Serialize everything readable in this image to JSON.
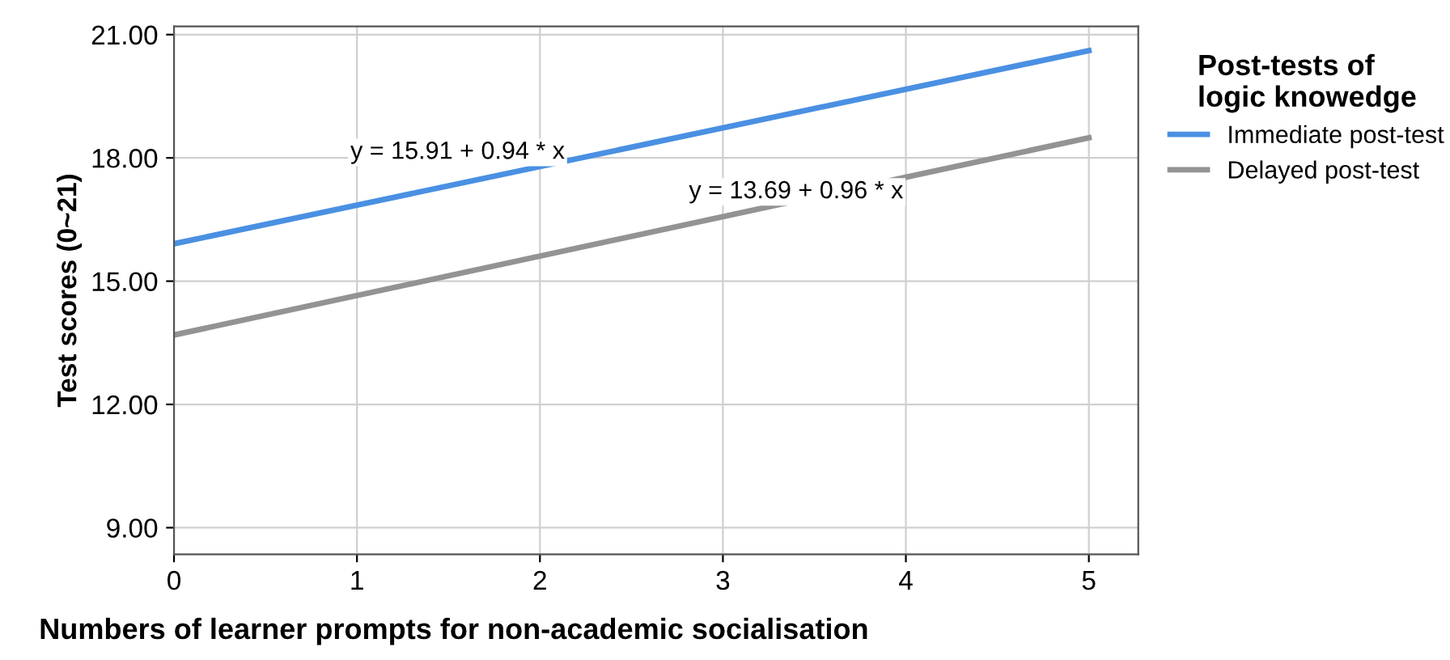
{
  "chart_data": {
    "type": "line",
    "xlabel": "Numbers of learner prompts for non-academic socialisation",
    "ylabel": "Test scores (0~21)",
    "legend_title": "Post-tests of\nlogic knowedge",
    "x": [
      0,
      5
    ],
    "series": [
      {
        "name": "Immediate post-test",
        "color": "#4a90e2",
        "values": [
          15.91,
          20.61
        ]
      },
      {
        "name": "Delayed post-test",
        "color": "#939393",
        "values": [
          13.69,
          18.49
        ]
      }
    ],
    "annotations": [
      "y = 15.91 + 0.94 * x",
      "y = 13.69 + 0.96 * x"
    ],
    "xlim": [
      0,
      5.27
    ],
    "ylim": [
      8.35,
      21.2
    ],
    "xticks": [
      0,
      1,
      2,
      3,
      4,
      5
    ],
    "yticks": [
      {
        "value": 9,
        "label": "9.00"
      },
      {
        "value": 12,
        "label": "12.00"
      },
      {
        "value": 15,
        "label": "15.00"
      },
      {
        "value": 18,
        "label": "18.00"
      },
      {
        "value": 21,
        "label": "21.00"
      }
    ],
    "grid": true,
    "legend": "right",
    "marker": "none",
    "line_style": "solid"
  }
}
